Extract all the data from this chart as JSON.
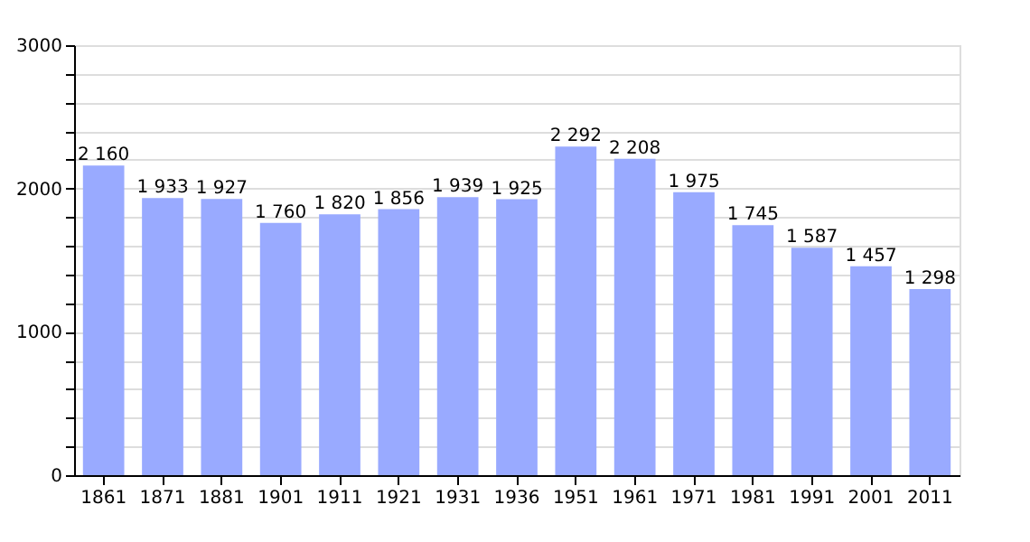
{
  "chart_data": {
    "type": "bar",
    "categories": [
      "1861",
      "1871",
      "1881",
      "1901",
      "1911",
      "1921",
      "1931",
      "1936",
      "1951",
      "1961",
      "1971",
      "1981",
      "1991",
      "2001",
      "2011"
    ],
    "values": [
      2160,
      1933,
      1927,
      1760,
      1820,
      1856,
      1939,
      1925,
      2292,
      2208,
      1975,
      1745,
      1587,
      1457,
      1298
    ],
    "value_labels": [
      "2 160",
      "1 933",
      "1 927",
      "1 760",
      "1 820",
      "1 856",
      "1 939",
      "1 925",
      "2 292",
      "2 208",
      "1 975",
      "1 745",
      "1 587",
      "1 457",
      "1 298"
    ],
    "color": "#99aaff",
    "ylim": [
      0,
      3000
    ],
    "yticks": [
      0,
      {
        "value": 200,
        "label": null
      },
      {
        "value": 400,
        "label": null
      },
      {
        "value": 600,
        "label": null
      },
      {
        "value": 800,
        "label": null
      },
      1000,
      {
        "value": 1200,
        "label": null
      },
      {
        "value": 1400,
        "label": null
      },
      {
        "value": 1600,
        "label": null
      },
      {
        "value": 1800,
        "label": null
      },
      2000,
      {
        "value": 2200,
        "label": null
      },
      {
        "value": 2400,
        "label": null
      },
      {
        "value": 2600,
        "label": null
      },
      {
        "value": 2800,
        "label": null
      },
      3000
    ],
    "grid": "y"
  }
}
